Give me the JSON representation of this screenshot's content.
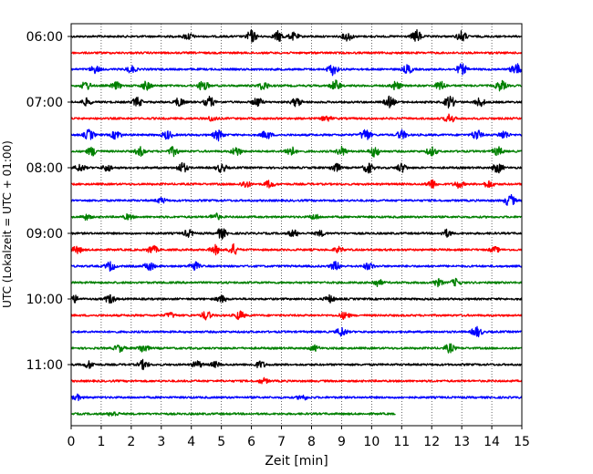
{
  "chart_data": {
    "type": "line",
    "title": "",
    "xlabel": "Zeit  [min]",
    "ylabel": "UTC (Lokalzeit = UTC + 01:00)",
    "xlim": [
      0,
      15
    ],
    "x_ticks": [
      0,
      1,
      2,
      3,
      4,
      5,
      6,
      7,
      8,
      9,
      10,
      11,
      12,
      13,
      14,
      15
    ],
    "y_ticks": [
      "06:00",
      "07:00",
      "08:00",
      "09:00",
      "10:00",
      "11:00"
    ],
    "grid_x": true,
    "trace_interval_min": 15,
    "trace_start": "06:00",
    "colors": [
      "#000000",
      "#ff0000",
      "#0000ff",
      "#008000"
    ],
    "traces": [
      {
        "start": "06:00",
        "color": "#000000",
        "end_min": 15,
        "events": [
          [
            6.0,
            7
          ],
          [
            6.9,
            6
          ],
          [
            9.2,
            5
          ],
          [
            11.5,
            7
          ],
          [
            13.0,
            6
          ],
          [
            3.9,
            4
          ],
          [
            7.4,
            4
          ]
        ]
      },
      {
        "start": "06:15",
        "color": "#ff0000",
        "end_min": 15,
        "events": []
      },
      {
        "start": "06:30",
        "color": "#0000ff",
        "end_min": 15,
        "events": [
          [
            0.8,
            4
          ],
          [
            2.0,
            4
          ],
          [
            8.7,
            6
          ],
          [
            11.2,
            5
          ],
          [
            13.0,
            6
          ],
          [
            14.8,
            7
          ]
        ]
      },
      {
        "start": "06:45",
        "color": "#008000",
        "end_min": 15,
        "events": [
          [
            0.5,
            5
          ],
          [
            1.5,
            4
          ],
          [
            2.5,
            5
          ],
          [
            4.4,
            6
          ],
          [
            6.4,
            5
          ],
          [
            8.8,
            6
          ],
          [
            10.8,
            5
          ],
          [
            12.3,
            5
          ],
          [
            14.3,
            6
          ]
        ]
      },
      {
        "start": "07:00",
        "color": "#000000",
        "end_min": 15,
        "events": [
          [
            0.5,
            4
          ],
          [
            2.2,
            5
          ],
          [
            3.6,
            5
          ],
          [
            4.6,
            6
          ],
          [
            6.2,
            5
          ],
          [
            7.5,
            5
          ],
          [
            10.6,
            6
          ],
          [
            12.6,
            7
          ],
          [
            13.6,
            5
          ]
        ]
      },
      {
        "start": "07:15",
        "color": "#ff0000",
        "end_min": 15,
        "events": [
          [
            4.7,
            3
          ],
          [
            8.5,
            3
          ],
          [
            12.6,
            5
          ]
        ]
      },
      {
        "start": "07:30",
        "color": "#0000ff",
        "end_min": 15,
        "events": [
          [
            0.6,
            6
          ],
          [
            1.5,
            5
          ],
          [
            3.2,
            5
          ],
          [
            4.9,
            6
          ],
          [
            6.5,
            5
          ],
          [
            9.8,
            7
          ],
          [
            11.0,
            5
          ],
          [
            13.5,
            6
          ],
          [
            14.4,
            5
          ]
        ]
      },
      {
        "start": "07:45",
        "color": "#008000",
        "end_min": 15,
        "events": [
          [
            0.7,
            5
          ],
          [
            2.3,
            5
          ],
          [
            3.4,
            5
          ],
          [
            5.5,
            5
          ],
          [
            7.3,
            6
          ],
          [
            9.0,
            5
          ],
          [
            10.1,
            6
          ],
          [
            12.0,
            5
          ],
          [
            14.2,
            5
          ]
        ]
      },
      {
        "start": "08:00",
        "color": "#000000",
        "end_min": 15,
        "events": [
          [
            0.3,
            4
          ],
          [
            1.2,
            4
          ],
          [
            3.7,
            6
          ],
          [
            5.0,
            5
          ],
          [
            8.8,
            5
          ],
          [
            9.9,
            6
          ],
          [
            11.0,
            5
          ],
          [
            14.2,
            6
          ]
        ]
      },
      {
        "start": "08:15",
        "color": "#ff0000",
        "end_min": 15,
        "events": [
          [
            5.8,
            4
          ],
          [
            6.6,
            4
          ],
          [
            12.0,
            5
          ],
          [
            12.9,
            4
          ],
          [
            13.9,
            4
          ]
        ]
      },
      {
        "start": "08:30",
        "color": "#0000ff",
        "end_min": 15,
        "events": [
          [
            3.0,
            3
          ],
          [
            14.6,
            7
          ]
        ]
      },
      {
        "start": "08:45",
        "color": "#008000",
        "end_min": 15,
        "events": [
          [
            0.5,
            3
          ],
          [
            1.9,
            3
          ],
          [
            4.8,
            4
          ],
          [
            8.1,
            3
          ]
        ]
      },
      {
        "start": "09:00",
        "color": "#000000",
        "end_min": 15,
        "events": [
          [
            3.9,
            4
          ],
          [
            5.0,
            6
          ],
          [
            7.4,
            4
          ],
          [
            8.3,
            3
          ],
          [
            12.5,
            4
          ]
        ]
      },
      {
        "start": "09:15",
        "color": "#ff0000",
        "end_min": 15,
        "events": [
          [
            0.2,
            4
          ],
          [
            2.7,
            5
          ],
          [
            4.8,
            5
          ],
          [
            5.4,
            6
          ],
          [
            8.9,
            3
          ],
          [
            14.1,
            3
          ]
        ]
      },
      {
        "start": "09:30",
        "color": "#0000ff",
        "end_min": 15,
        "events": [
          [
            1.3,
            5
          ],
          [
            2.6,
            5
          ],
          [
            4.1,
            5
          ],
          [
            8.8,
            5
          ],
          [
            9.9,
            4
          ]
        ]
      },
      {
        "start": "09:45",
        "color": "#008000",
        "end_min": 15,
        "events": [
          [
            10.2,
            4
          ],
          [
            12.2,
            4
          ],
          [
            12.8,
            4
          ]
        ]
      },
      {
        "start": "10:00",
        "color": "#000000",
        "end_min": 15,
        "events": [
          [
            0.1,
            4
          ],
          [
            1.3,
            5
          ],
          [
            5.0,
            4
          ],
          [
            8.6,
            4
          ]
        ]
      },
      {
        "start": "10:15",
        "color": "#ff0000",
        "end_min": 15,
        "events": [
          [
            3.3,
            3
          ],
          [
            4.5,
            5
          ],
          [
            5.6,
            5
          ],
          [
            9.1,
            4
          ]
        ]
      },
      {
        "start": "10:30",
        "color": "#0000ff",
        "end_min": 15,
        "events": [
          [
            9.0,
            5
          ],
          [
            13.5,
            6
          ]
        ]
      },
      {
        "start": "10:45",
        "color": "#008000",
        "end_min": 15,
        "events": [
          [
            1.6,
            4
          ],
          [
            2.4,
            5
          ],
          [
            8.1,
            3
          ],
          [
            12.6,
            5
          ]
        ]
      },
      {
        "start": "11:00",
        "color": "#000000",
        "end_min": 15,
        "events": [
          [
            0.6,
            4
          ],
          [
            2.4,
            5
          ],
          [
            4.2,
            4
          ],
          [
            4.8,
            3
          ],
          [
            6.3,
            4
          ]
        ]
      },
      {
        "start": "11:15",
        "color": "#ff0000",
        "end_min": 15,
        "events": [
          [
            6.4,
            3
          ]
        ]
      },
      {
        "start": "11:30",
        "color": "#0000ff",
        "end_min": 15,
        "events": [
          [
            0.2,
            3
          ],
          [
            7.7,
            3
          ]
        ]
      },
      {
        "start": "11:45",
        "color": "#008000",
        "end_min": 10.8,
        "events": [
          [
            1.4,
            3
          ]
        ]
      }
    ]
  }
}
